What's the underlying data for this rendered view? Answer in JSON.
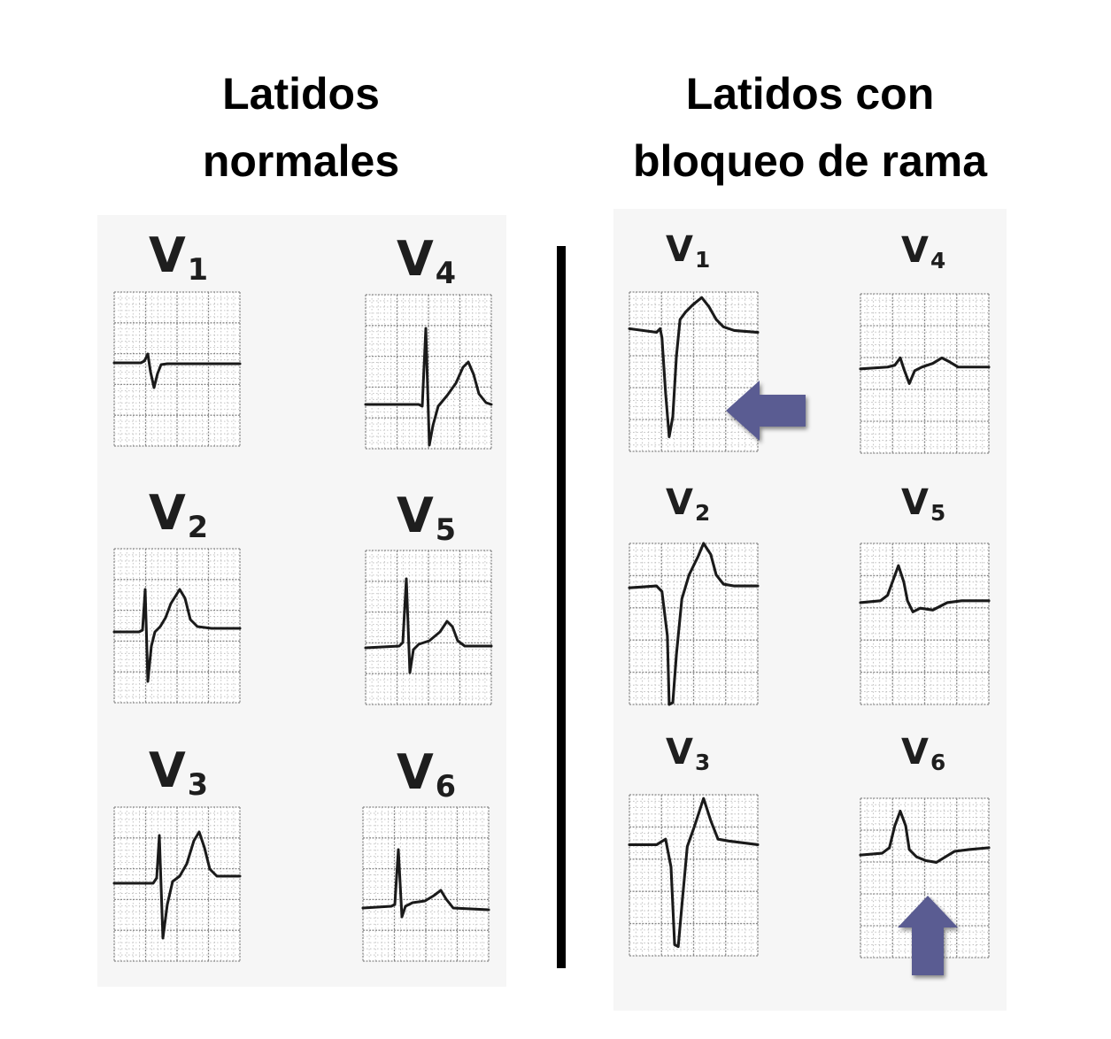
{
  "headings": {
    "left": [
      "Latidos",
      "normales"
    ],
    "right": [
      "Latidos con",
      "bloqueo de rama"
    ]
  },
  "leads": {
    "lead_letter": "V",
    "v1": "1",
    "v2": "2",
    "v3": "3",
    "v4": "4",
    "v5": "5",
    "v6": "6"
  },
  "colors": {
    "trace": "#1a1a1a",
    "grid_major": "#8a8a8a",
    "grid_minor": "#b8b8b8",
    "arrow": "#5a5c92",
    "divider": "#000000"
  },
  "icons": {
    "arrow_v1": "left-arrow-icon",
    "arrow_v6": "up-arrow-icon"
  }
}
